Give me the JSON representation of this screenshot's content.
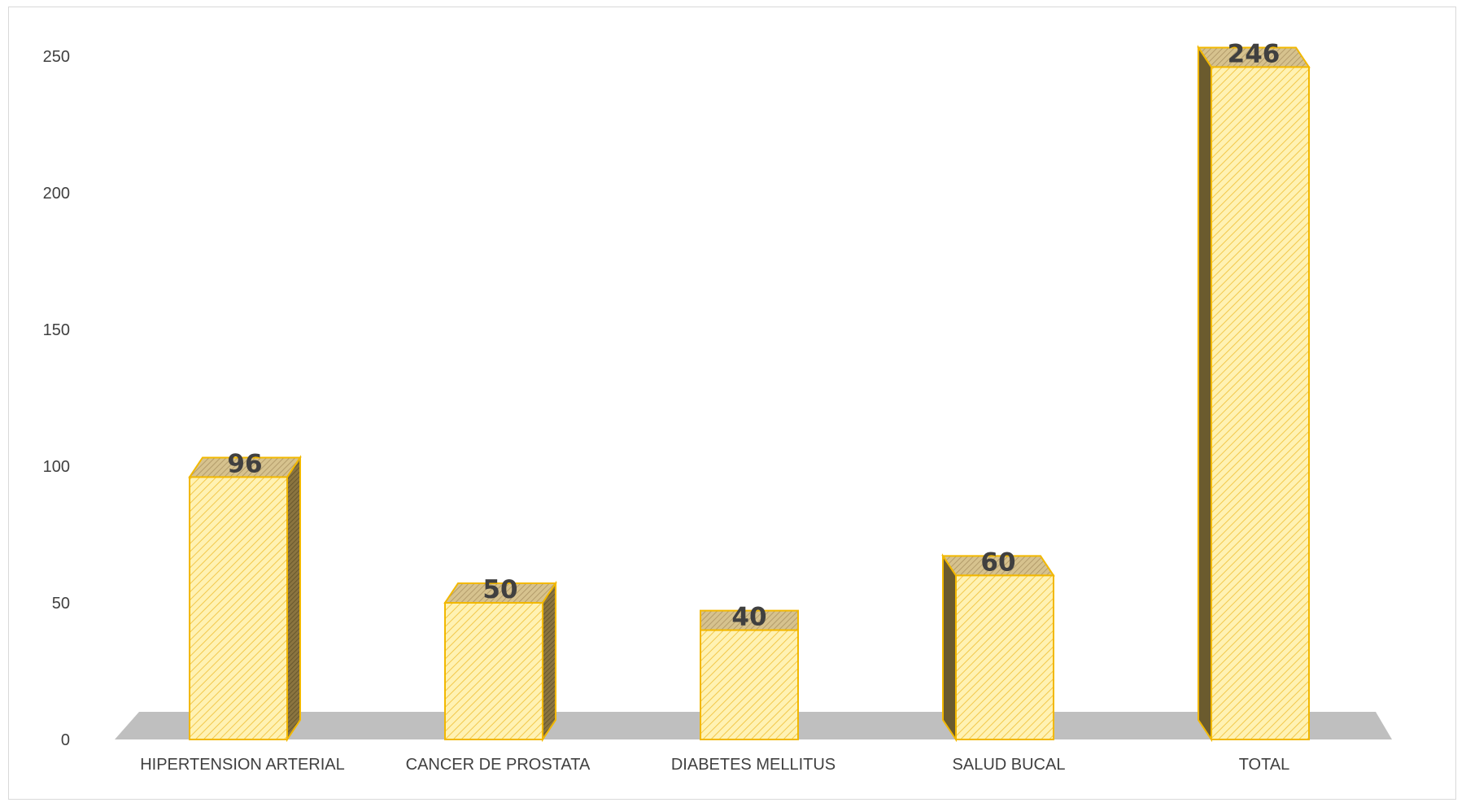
{
  "chart_data": {
    "type": "bar",
    "style": "3d-column",
    "categories": [
      "HIPERTENSION ARTERIAL",
      "CANCER DE PROSTATA",
      "DIABETES MELLITUS",
      "SALUD BUCAL",
      "TOTAL"
    ],
    "values": [
      96,
      50,
      40,
      60,
      246
    ],
    "data_labels": [
      "96",
      "50",
      "40",
      "60",
      "246"
    ],
    "y_ticks": [
      "0",
      "50",
      "100",
      "150",
      "200",
      "250"
    ],
    "ylim": [
      0,
      250
    ],
    "title": "",
    "xlabel": "",
    "ylabel": "",
    "grid": false,
    "legend": "none",
    "colors": {
      "bar_fill": "#fff2b3",
      "bar_hatch": "#f2c84b",
      "bar_outline": "#f2b800",
      "bar_side": "#6b5b2e",
      "bar_top": "#c9b27a",
      "floor": "#bfbfbf"
    }
  }
}
